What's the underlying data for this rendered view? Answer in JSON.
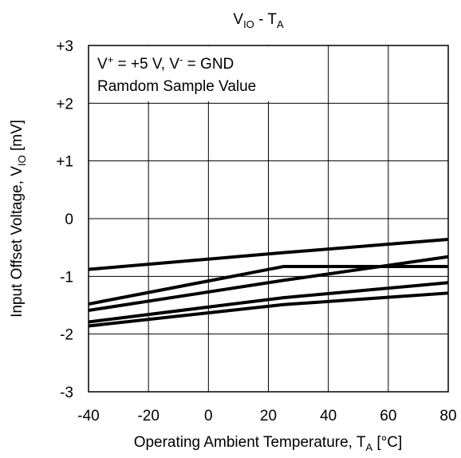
{
  "chart_data": {
    "type": "line",
    "title": {
      "main": "V",
      "sub": "IO",
      "mid": " - T",
      "sub2": "A"
    },
    "xlabel": {
      "main": "Operating Ambient Temperature, T",
      "sub": "A",
      "suffix": " [°C]"
    },
    "ylabel": {
      "main": "Input Offset Voltage, V",
      "sub": "IO",
      "suffix": " [mV]"
    },
    "xlim": [
      -40,
      80
    ],
    "ylim": [
      -3,
      3
    ],
    "x_ticks": [
      -40,
      -20,
      0,
      20,
      40,
      60,
      80
    ],
    "x_tick_labels": [
      "-40",
      "-20",
      "0",
      "20",
      "40",
      "60",
      "80"
    ],
    "y_ticks": [
      3,
      2,
      1,
      0,
      -1,
      -2,
      -3
    ],
    "y_tick_labels": [
      "+3",
      "+2",
      "+1",
      "0",
      "-1",
      "-2",
      "-3"
    ],
    "grid": true,
    "annotation": {
      "line1": {
        "a": "V",
        "a_sup": "+",
        "b": " = +5 V, V",
        "b_sup": "-",
        "c": " = GND"
      },
      "line2": "Ramdom Sample Value"
    },
    "line_color": "#000000",
    "series": [
      {
        "x": [
          -40,
          25,
          80
        ],
        "y": [
          -0.88,
          -0.59,
          -0.36
        ]
      },
      {
        "x": [
          -40,
          25,
          80
        ],
        "y": [
          -1.48,
          -0.83,
          -0.83
        ]
      },
      {
        "x": [
          -40,
          25,
          80
        ],
        "y": [
          -1.59,
          -1.07,
          -0.66
        ]
      },
      {
        "x": [
          -40,
          25,
          80
        ],
        "y": [
          -1.79,
          -1.37,
          -1.11
        ]
      },
      {
        "x": [
          -40,
          25,
          80
        ],
        "y": [
          -1.86,
          -1.49,
          -1.29
        ]
      }
    ]
  }
}
